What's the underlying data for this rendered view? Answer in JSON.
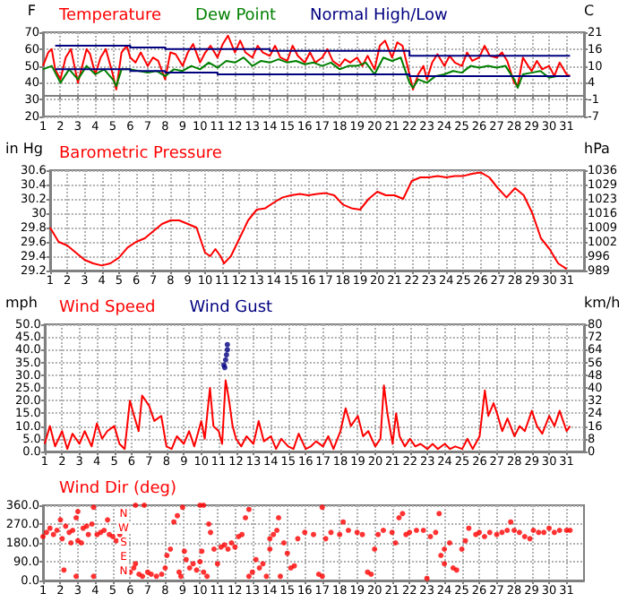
{
  "chart_data": [
    {
      "type": "line",
      "ylabel": "F",
      "y2label": "C",
      "legend": "top left",
      "grid": true,
      "xlim": [
        1,
        32
      ],
      "xticks": [
        1,
        2,
        3,
        4,
        5,
        6,
        7,
        8,
        9,
        10,
        11,
        12,
        13,
        14,
        15,
        16,
        17,
        18,
        19,
        20,
        21,
        22,
        23,
        24,
        25,
        26,
        27,
        28,
        29,
        30,
        31
      ],
      "ylim": [
        20,
        70
      ],
      "yticks": [
        20,
        30,
        40,
        50,
        60,
        70
      ],
      "y2lim": [
        -6.7,
        21.1
      ],
      "y2ticks": [
        {
          "value": -6.7,
          "label": "-7"
        },
        {
          "value": -1.1,
          "label": "-1"
        },
        {
          "value": 4.4,
          "label": "4"
        },
        10,
        {
          "value": 15.6,
          "label": "16"
        },
        {
          "value": 21.1,
          "label": "21"
        }
      ],
      "series": [
        {
          "name": "Temperature",
          "color": "#ff0000",
          "x": [
            1,
            1.3,
            1.5,
            1.7,
            2,
            2.3,
            2.6,
            3,
            3.2,
            3.5,
            3.7,
            4,
            4.3,
            4.6,
            5,
            5.2,
            5.5,
            5.8,
            6,
            6.3,
            6.6,
            7,
            7.3,
            7.6,
            8,
            8.3,
            8.6,
            9,
            9.3,
            9.6,
            10,
            10.3,
            10.6,
            11,
            11.3,
            11.6,
            12,
            12.3,
            12.6,
            13,
            13.3,
            13.6,
            14,
            14.3,
            14.6,
            15,
            15.3,
            15.6,
            16,
            16.3,
            16.6,
            17,
            17.3,
            17.6,
            18,
            18.3,
            18.6,
            19,
            19.3,
            19.6,
            20,
            20.3,
            20.6,
            21,
            21.3,
            21.6,
            22,
            22.2,
            22.5,
            22.8,
            23,
            23.3,
            23.6,
            24,
            24.3,
            24.6,
            25,
            25.3,
            25.6,
            26,
            26.3,
            26.6,
            27,
            27.3,
            27.6,
            28,
            28.2,
            28.5,
            28.8,
            29,
            29.3,
            29.6,
            30,
            30.3,
            30.6,
            31,
            31.2
          ],
          "values": [
            50,
            58,
            60,
            48,
            42,
            55,
            60,
            40,
            48,
            60,
            57,
            45,
            55,
            60,
            45,
            36,
            58,
            62,
            55,
            52,
            58,
            50,
            55,
            53,
            42,
            58,
            57,
            50,
            58,
            63,
            52,
            58,
            62,
            55,
            63,
            68,
            58,
            65,
            58,
            55,
            62,
            58,
            56,
            62,
            55,
            53,
            62,
            56,
            52,
            58,
            52,
            55,
            60,
            53,
            50,
            54,
            52,
            55,
            50,
            56,
            48,
            62,
            65,
            55,
            64,
            62,
            45,
            36,
            45,
            50,
            42,
            52,
            57,
            50,
            56,
            52,
            50,
            58,
            53,
            55,
            62,
            56,
            55,
            58,
            53,
            40,
            38,
            55,
            50,
            47,
            53,
            48,
            50,
            44,
            52,
            45,
            44
          ]
        },
        {
          "name": "Dew Point",
          "color": "#008000",
          "x": [
            1,
            1.5,
            2,
            2.5,
            3,
            3.5,
            4,
            4.5,
            5,
            5.2,
            5.5,
            6,
            6.5,
            7,
            7.5,
            8,
            8.5,
            9,
            9.5,
            10,
            10.5,
            11,
            11.5,
            12,
            12.5,
            13,
            13.5,
            14,
            14.5,
            15,
            15.5,
            16,
            16.5,
            17,
            17.5,
            18,
            18.5,
            19,
            19.5,
            20,
            20.5,
            21,
            21.5,
            22,
            22.2,
            22.5,
            23,
            23.5,
            24,
            24.5,
            25,
            25.5,
            26,
            26.5,
            27,
            27.5,
            28,
            28.2,
            28.5,
            29,
            29.5,
            30,
            30.5,
            31
          ],
          "values": [
            48,
            50,
            40,
            48,
            42,
            50,
            45,
            48,
            42,
            38,
            48,
            48,
            47,
            46,
            47,
            44,
            48,
            47,
            50,
            48,
            52,
            49,
            53,
            52,
            55,
            50,
            53,
            52,
            54,
            52,
            53,
            51,
            52,
            50,
            52,
            48,
            50,
            50,
            52,
            45,
            55,
            53,
            55,
            40,
            37,
            42,
            40,
            44,
            45,
            47,
            46,
            50,
            49,
            50,
            49,
            50,
            42,
            37,
            45,
            46,
            47,
            43,
            44,
            44
          ]
        },
        {
          "name": "Normal High/Low",
          "type": "step",
          "color": "#000080",
          "x": [
            1.7,
            6,
            8,
            11,
            14,
            18,
            22,
            27,
            31.2
          ],
          "values": [
            62,
            61,
            60,
            60,
            59,
            59,
            56,
            56,
            56
          ]
        },
        {
          "type": "step",
          "color": "#000080",
          "x": [
            1.7,
            6,
            8,
            11,
            14,
            18,
            22,
            31.2
          ],
          "values": [
            48,
            47,
            46,
            45,
            45,
            45,
            44,
            44
          ]
        }
      ]
    },
    {
      "type": "line",
      "ylabel": "in Hg",
      "y2label": "hPa",
      "legend": "top left",
      "grid": true,
      "xlim": [
        1,
        32
      ],
      "xticks": [
        1,
        2,
        3,
        4,
        5,
        6,
        7,
        8,
        9,
        10,
        11,
        12,
        13,
        14,
        15,
        16,
        17,
        18,
        19,
        20,
        21,
        22,
        23,
        24,
        25,
        26,
        27,
        28,
        29,
        30,
        31
      ],
      "ylim": [
        29.2,
        30.6
      ],
      "yticks": [
        29.2,
        29.4,
        29.6,
        29.8,
        30.0,
        30.2,
        30.4,
        30.6
      ],
      "y2lim": [
        988.8,
        1036.2
      ],
      "y2ticks": [
        {
          "value": 988.8,
          "label": "989"
        },
        {
          "value": 995.6,
          "label": "996"
        },
        {
          "value": 1002.4,
          "label": "1002"
        },
        {
          "value": 1009.1,
          "label": "1009"
        },
        {
          "value": 1015.9,
          "label": "1016"
        },
        {
          "value": 1022.7,
          "label": "1023"
        },
        {
          "value": 1029.5,
          "label": "1029"
        },
        {
          "value": 1036.2,
          "label": "1036"
        }
      ],
      "series": [
        {
          "name": "Barometric Pressure",
          "color": "#ff0000",
          "x": [
            1,
            1.5,
            2,
            2.5,
            3,
            3.5,
            4,
            4.5,
            5,
            5.5,
            6,
            6.5,
            7,
            7.5,
            8,
            8.5,
            9,
            9.5,
            10,
            10.3,
            10.6,
            10.9,
            11.1,
            11.5,
            12,
            12.5,
            13,
            13.5,
            14,
            14.5,
            15,
            15.5,
            16,
            16.5,
            17,
            17.5,
            18,
            18.5,
            19,
            19.5,
            20,
            20.5,
            21,
            21.5,
            22,
            22.5,
            23,
            23.5,
            24,
            24.5,
            25,
            25.5,
            26,
            26.5,
            27,
            27.5,
            28,
            28.5,
            29,
            29.5,
            30,
            30.5,
            31
          ],
          "values": [
            29.8,
            29.6,
            29.55,
            29.45,
            29.35,
            29.3,
            29.27,
            29.3,
            29.38,
            29.52,
            29.6,
            29.65,
            29.75,
            29.85,
            29.9,
            29.9,
            29.85,
            29.8,
            29.45,
            29.4,
            29.5,
            29.4,
            29.3,
            29.4,
            29.65,
            29.9,
            30.05,
            30.07,
            30.15,
            30.22,
            30.25,
            30.27,
            30.25,
            30.27,
            30.28,
            30.25,
            30.12,
            30.07,
            30.05,
            30.2,
            30.3,
            30.25,
            30.25,
            30.2,
            30.45,
            30.5,
            30.5,
            30.52,
            30.5,
            30.52,
            30.52,
            30.55,
            30.57,
            30.5,
            30.35,
            30.22,
            30.35,
            30.25,
            30.0,
            29.65,
            29.5,
            29.3,
            29.22
          ]
        }
      ]
    },
    {
      "type": "line",
      "ylabel": "mph",
      "y2label": "km/h",
      "legend": "top left",
      "grid": true,
      "xlim": [
        1,
        32
      ],
      "xticks": [
        1,
        2,
        3,
        4,
        5,
        6,
        7,
        8,
        9,
        10,
        11,
        12,
        13,
        14,
        15,
        16,
        17,
        18,
        19,
        20,
        21,
        22,
        23,
        24,
        25,
        26,
        27,
        28,
        29,
        30,
        31
      ],
      "ylim": [
        0,
        50
      ],
      "yticks": [
        {
          "value": 0,
          "label": "0.0"
        },
        {
          "value": 5,
          "label": "5.0"
        },
        {
          "value": 10,
          "label": "10.0"
        },
        {
          "value": 15,
          "label": "15.0"
        },
        {
          "value": 20,
          "label": "20.0"
        },
        {
          "value": 25,
          "label": "25.0"
        },
        {
          "value": 30,
          "label": "30.0"
        },
        {
          "value": 35,
          "label": "35.0"
        },
        {
          "value": 40,
          "label": "40.0"
        },
        {
          "value": 45,
          "label": "45.0"
        },
        {
          "value": 50,
          "label": "50.0"
        }
      ],
      "y2lim": [
        0,
        80.5
      ],
      "y2ticks": [
        0,
        {
          "value": 8.05,
          "label": "8"
        },
        {
          "value": 16.1,
          "label": "16"
        },
        {
          "value": 24.15,
          "label": "24"
        },
        {
          "value": 32.2,
          "label": "32"
        },
        {
          "value": 40.25,
          "label": "40"
        },
        {
          "value": 48.3,
          "label": "48"
        },
        {
          "value": 56.35,
          "label": "56"
        },
        {
          "value": 64.4,
          "label": "64"
        },
        {
          "value": 72.45,
          "label": "72"
        },
        {
          "value": 80.5,
          "label": "80"
        }
      ],
      "series": [
        {
          "name": "Wind Speed",
          "color": "#ff0000",
          "x": [
            1,
            1.3,
            1.6,
            2,
            2.3,
            2.6,
            3,
            3.3,
            3.7,
            4,
            4.3,
            4.6,
            5,
            5.3,
            5.6,
            5.9,
            6.1,
            6.4,
            6.6,
            7,
            7.3,
            7.7,
            8,
            8.3,
            8.6,
            9,
            9.3,
            9.6,
            10,
            10.2,
            10.5,
            10.7,
            11,
            11.2,
            11.4,
            11.6,
            11.8,
            12,
            12.3,
            12.6,
            13,
            13.3,
            13.6,
            14,
            14.3,
            14.6,
            15,
            15.3,
            15.6,
            16,
            16.3,
            16.6,
            17,
            17.3,
            17.6,
            18,
            18.3,
            18.6,
            19,
            19.3,
            19.6,
            20,
            20.3,
            20.5,
            20.7,
            21,
            21.2,
            21.4,
            21.7,
            22,
            22.3,
            22.6,
            23,
            23.3,
            23.6,
            24,
            24.3,
            24.6,
            25,
            25.3,
            25.6,
            26,
            26.3,
            26.5,
            26.8,
            27,
            27.3,
            27.6,
            28,
            28.3,
            28.6,
            29,
            29.3,
            29.6,
            30,
            30.3,
            30.6,
            31,
            31.2
          ],
          "values": [
            3,
            10,
            2,
            8,
            1,
            7,
            3,
            8,
            2,
            11,
            5,
            8,
            10,
            3,
            1,
            20,
            15,
            8,
            22,
            18,
            12,
            14,
            2,
            1,
            6,
            3,
            8,
            2,
            12,
            5,
            25,
            10,
            8,
            3,
            28,
            20,
            10,
            5,
            2,
            6,
            3,
            12,
            4,
            6,
            1,
            5,
            2,
            1,
            7,
            1,
            2,
            4,
            2,
            6,
            1,
            8,
            17,
            10,
            14,
            6,
            8,
            2,
            5,
            26,
            15,
            3,
            15,
            6,
            2,
            5,
            2,
            3,
            1,
            3,
            1,
            3,
            1,
            2,
            1,
            5,
            1,
            6,
            24,
            14,
            19,
            15,
            8,
            13,
            6,
            10,
            8,
            16,
            10,
            7,
            14,
            10,
            16,
            8,
            10
          ]
        },
        {
          "name": "Wind Gust",
          "type": "scatter",
          "marker": "circle",
          "color": "#000080",
          "x": [
            11.3,
            11.35,
            11.4,
            11.45,
            11.5,
            11.5
          ],
          "values": [
            34,
            33,
            36,
            38,
            40,
            42
          ]
        }
      ]
    },
    {
      "type": "scatter",
      "marker": "circle",
      "legend": "top left",
      "grid": true,
      "xlim": [
        1,
        32
      ],
      "xticks": [
        1,
        2,
        3,
        4,
        5,
        6,
        7,
        8,
        9,
        10,
        11,
        12,
        13,
        14,
        15,
        16,
        17,
        18,
        19,
        20,
        21,
        22,
        23,
        24,
        25,
        26,
        27,
        28,
        29,
        30,
        31
      ],
      "ylim": [
        0,
        360
      ],
      "yticks": [
        {
          "value": 0,
          "label": "0.0"
        },
        {
          "value": 90,
          "label": "90.0"
        },
        {
          "value": 180,
          "label": "180.0"
        },
        {
          "value": 270,
          "label": "270.0"
        },
        {
          "value": 360,
          "label": "360.0"
        }
      ],
      "annotations": [
        "N",
        "W",
        "S",
        "E",
        "N"
      ],
      "series": [
        {
          "name": "Wind Dir (deg)",
          "color": "#ff0000",
          "x": [
            1,
            1.2,
            1.4,
            1.6,
            1.8,
            2,
            2.1,
            2.3,
            2.5,
            2.6,
            2.7,
            2.9,
            3,
            3,
            3.2,
            3.3,
            3.5,
            3.6,
            3.8,
            3.9,
            3.9,
            2.2,
            2.9,
            4.1,
            4.3,
            4.5,
            4.7,
            4.8,
            5,
            5.2,
            5.4,
            6,
            6.2,
            6.3,
            6.5,
            6.7,
            7,
            7.2,
            7.5,
            7.8,
            8,
            8.1,
            8.3,
            8.5,
            8.7,
            8.8,
            8.9,
            9,
            9.1,
            9.2,
            9.4,
            9.6,
            9.8,
            10,
            10.1,
            10.2,
            10.4,
            10.5,
            10.6,
            10.8,
            11,
            11.2,
            11.4,
            11.6,
            11.8,
            12,
            12.2,
            12.4,
            12.6,
            12.8,
            12.8,
            13,
            13.2,
            13.4,
            13.6,
            13.8,
            14,
            14,
            14.2,
            14.4,
            14.5,
            14.6,
            14.8,
            15,
            15.2,
            15.4,
            15.6,
            16,
            16.5,
            16.8,
            17,
            17,
            17.2,
            17.5,
            18,
            18.2,
            18.5,
            19,
            19.3,
            19.6,
            19.8,
            20,
            20.2,
            20.5,
            21,
            21.2,
            21.4,
            21.6,
            21.8,
            22,
            22.4,
            22.8,
            23,
            23.2,
            23.5,
            23.7,
            23.8,
            24,
            24,
            24.3,
            24.5,
            24.7,
            25,
            25.2,
            25.4,
            25.8,
            26,
            26.3,
            26.6,
            27,
            27.3,
            27.6,
            27.8,
            28,
            28.3,
            28.6,
            28.9,
            29.1,
            29.4,
            29.7,
            30,
            30.3,
            30.6,
            31,
            31.2,
            6.3,
            6.8,
            10,
            10.2
          ],
          "values": [
            210,
            230,
            250,
            220,
            240,
            290,
            200,
            260,
            230,
            180,
            240,
            300,
            330,
            190,
            180,
            250,
            260,
            220,
            270,
            350,
            20,
            50,
            20,
            220,
            230,
            240,
            290,
            220,
            210,
            190,
            220,
            40,
            60,
            80,
            30,
            20,
            40,
            30,
            20,
            30,
            60,
            120,
            150,
            280,
            310,
            40,
            20,
            350,
            140,
            100,
            60,
            80,
            50,
            90,
            140,
            40,
            20,
            270,
            230,
            150,
            80,
            160,
            170,
            150,
            180,
            160,
            210,
            220,
            300,
            340,
            20,
            40,
            100,
            60,
            80,
            20,
            150,
            200,
            220,
            240,
            300,
            20,
            180,
            130,
            60,
            70,
            200,
            230,
            220,
            30,
            20,
            350,
            200,
            230,
            220,
            280,
            240,
            230,
            220,
            40,
            30,
            150,
            220,
            240,
            230,
            180,
            300,
            320,
            220,
            230,
            240,
            240,
            10,
            210,
            230,
            320,
            120,
            150,
            80,
            180,
            60,
            50,
            150,
            190,
            250,
            220,
            230,
            210,
            230,
            220,
            230,
            240,
            280,
            240,
            230,
            210,
            200,
            240,
            230,
            230,
            250,
            230,
            240,
            240,
            240,
            360,
            360,
            360,
            360
          ]
        }
      ]
    }
  ]
}
